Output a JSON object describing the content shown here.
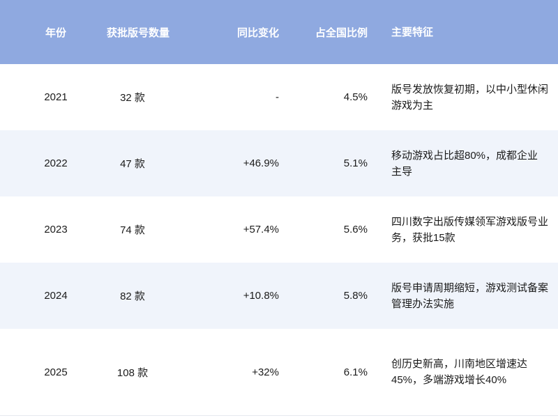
{
  "headers": {
    "year": "年份",
    "count": "获批版号数量",
    "change": "同比变化",
    "ratio": "占全国比例",
    "feature": "主要特征"
  },
  "rows": [
    {
      "year": "2021",
      "count": "32 款",
      "change": "-",
      "ratio": "4.5%",
      "feature": "版号发放恢复初期，以中小型休闲游戏为主"
    },
    {
      "year": "2022",
      "count": "47 款",
      "change": "+46.9%",
      "ratio": "5.1%",
      "feature": "移动游戏占比超80%，成都企业主导"
    },
    {
      "year": "2023",
      "count": "74 款",
      "change": "+57.4%",
      "ratio": "5.6%",
      "feature": "四川数字出版传媒领军游戏版号业务，获批15款"
    },
    {
      "year": "2024",
      "count": "82 款",
      "change": "+10.8%",
      "ratio": "5.8%",
      "feature": "版号申请周期缩短，游戏测试备案管理办法实施"
    },
    {
      "year": "2025",
      "count": "108 款",
      "change": "+32%",
      "ratio": "6.1%",
      "feature": "创历史新高，川南地区增速达45%，多端游戏增长40%"
    }
  ],
  "colors": {
    "header_bg": "#8fa9e0",
    "alt_row_bg": "#f0f4fb"
  }
}
